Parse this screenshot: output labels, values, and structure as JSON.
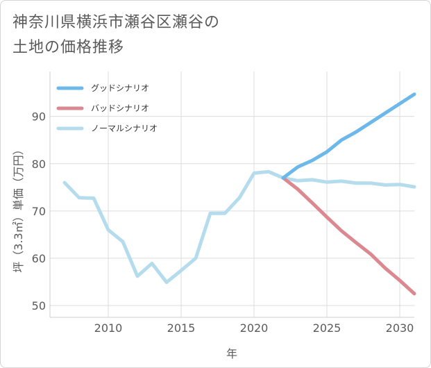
{
  "chart_data": {
    "type": "line",
    "title_line1": "神奈川県横浜市瀬谷区瀬谷の",
    "title_line2": "土地の価格推移",
    "xlabel": "年",
    "ylabel": "坪（3.3㎡）単価（万円）",
    "xlim": [
      2006,
      2031
    ],
    "ylim": [
      47.5,
      99.5
    ],
    "xticks": [
      2010,
      2015,
      2020,
      2025,
      2030
    ],
    "yticks": [
      50,
      60,
      70,
      80,
      90
    ],
    "legend_position": "top-left",
    "series": [
      {
        "name": "グッドシナリオ",
        "color": "#6cb8ea",
        "x": [
          2022,
          2023,
          2024,
          2025,
          2026,
          2027,
          2028,
          2029,
          2030,
          2031
        ],
        "values": [
          77.0,
          79.3,
          80.7,
          82.5,
          85.0,
          86.7,
          88.7,
          90.7,
          92.7,
          94.7
        ]
      },
      {
        "name": "バッドシナリオ",
        "color": "#dc8890",
        "x": [
          2022,
          2023,
          2024,
          2025,
          2026,
          2027,
          2028,
          2029,
          2030,
          2031
        ],
        "values": [
          77.0,
          74.6,
          71.7,
          68.7,
          65.8,
          63.3,
          60.9,
          57.9,
          55.3,
          52.5
        ]
      },
      {
        "name": "ノーマルシナリオ",
        "color": "#b5dcec",
        "x": [
          2007,
          2008,
          2009,
          2010,
          2011,
          2012,
          2013,
          2014,
          2015,
          2016,
          2017,
          2018,
          2019,
          2020,
          2021,
          2022,
          2023,
          2024,
          2025,
          2026,
          2027,
          2028,
          2029,
          2030,
          2031
        ],
        "values": [
          76.0,
          72.8,
          72.7,
          66.0,
          63.5,
          56.2,
          58.9,
          54.9,
          57.4,
          60.0,
          69.5,
          69.5,
          72.8,
          78.0,
          78.3,
          77.0,
          76.4,
          76.6,
          76.1,
          76.3,
          75.9,
          75.9,
          75.5,
          75.6,
          75.1
        ]
      }
    ]
  }
}
